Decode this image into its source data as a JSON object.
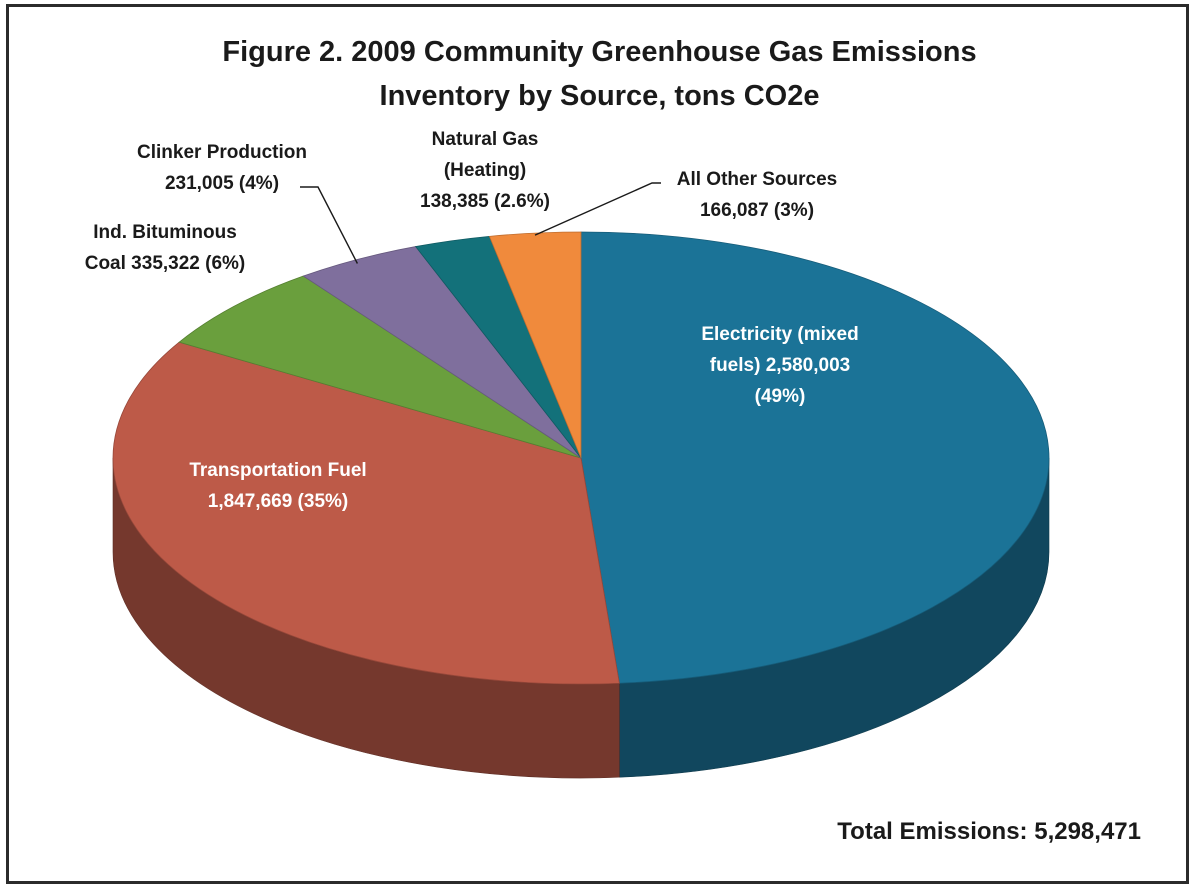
{
  "chart_data": {
    "type": "pie",
    "title_line1": "Figure 2.  2009 Community Greenhouse Gas Emissions",
    "title_line2": "Inventory by Source,  tons CO2e",
    "total_label": "Total Emissions:  5,298,471",
    "slices": [
      {
        "name": "Electricity (mixed fuels)",
        "value": 2580003,
        "percent": 49,
        "color": "#1b7397",
        "label_lines": [
          "Electricity (mixed",
          "fuels)  2,580,003",
          "(49%)"
        ]
      },
      {
        "name": "Transportation Fuel",
        "value": 1847669,
        "percent": 35,
        "color": "#bd5a48",
        "label_lines": [
          "Transportation Fuel",
          "1,847,669  (35%)"
        ]
      },
      {
        "name": "Ind. Bituminous Coal",
        "value": 335322,
        "percent": 6,
        "color": "#6a9f3d",
        "label_lines": [
          "Ind. Bituminous",
          "Coal  335,322  (6%)"
        ]
      },
      {
        "name": "Clinker Production",
        "value": 231005,
        "percent": 4,
        "color": "#7f6f9d",
        "label_lines": [
          "Clinker Production",
          "231,005  (4%)"
        ]
      },
      {
        "name": "Natural Gas (Heating)",
        "value": 138385,
        "percent": 2.6,
        "color": "#13717a",
        "label_lines": [
          "Natural Gas",
          "(Heating)",
          "138,385  (2.6%)"
        ]
      },
      {
        "name": "All Other Sources",
        "value": 166087,
        "percent": 3,
        "color": "#f08a3c",
        "label_lines": [
          "All Other Sources",
          "166,087  (3%)"
        ]
      }
    ]
  }
}
